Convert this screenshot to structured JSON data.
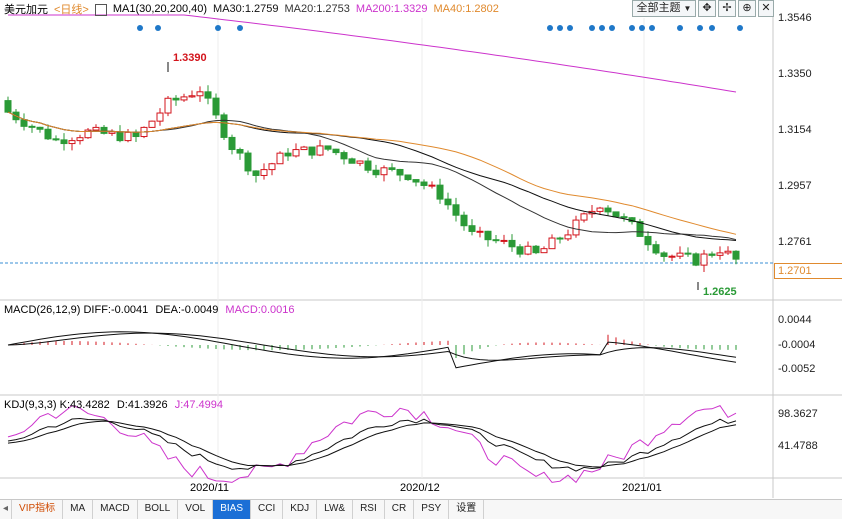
{
  "header": {
    "symbol": "美元加元",
    "period": "<日线>",
    "ma_label": "MA1(30,20,200,40)",
    "ma30": "MA30:1.2759",
    "ma20": "MA20:1.2753",
    "ma200": "MA200:1.3329",
    "ma40": "MA40:1.2802",
    "theme_select": "全部主题",
    "theme_arrow": "▼"
  },
  "colors": {
    "up": "#d3141c",
    "down": "#2a9a36",
    "ma30": "#111111",
    "ma20": "#333333",
    "ma200": "#cc33cc",
    "ma40": "#e08a2e",
    "dots": "#1f78c8",
    "macd_diff": "#000000",
    "macd_dea": "#000000",
    "kdj_k": "#111111",
    "kdj_d": "#111111",
    "kdj_j": "#cc33cc"
  },
  "main_axis": [
    "1.3546",
    "1.3350",
    "1.3154",
    "1.2957",
    "1.2761"
  ],
  "current_price": "1.2701",
  "annot_high": "1.3390",
  "annot_low": "1.2625",
  "macd": {
    "title": "MACD(26,12,9)",
    "diff": "DIFF:-0.0041",
    "dea": "DEA:-0.0049",
    "macd": "MACD:0.0016",
    "axis": [
      "0.0044",
      "-0.0004",
      "-0.0052"
    ]
  },
  "kdj": {
    "title": "KDJ(9,3,3)",
    "k": "K:43.4282",
    "d": "D:41.3926",
    "j": "J:47.4994",
    "axis": [
      "98.3627",
      "41.4788"
    ]
  },
  "dates": [
    "2020/11",
    "2020/12",
    "2021/01"
  ],
  "tabs": [
    "VIP指标",
    "MA",
    "MACD",
    "BOLL",
    "VOL",
    "BIAS",
    "CCI",
    "KDJ",
    "LW&",
    "RSI",
    "CR",
    "PSY",
    "设置"
  ],
  "active_tab": "BIAS"
}
